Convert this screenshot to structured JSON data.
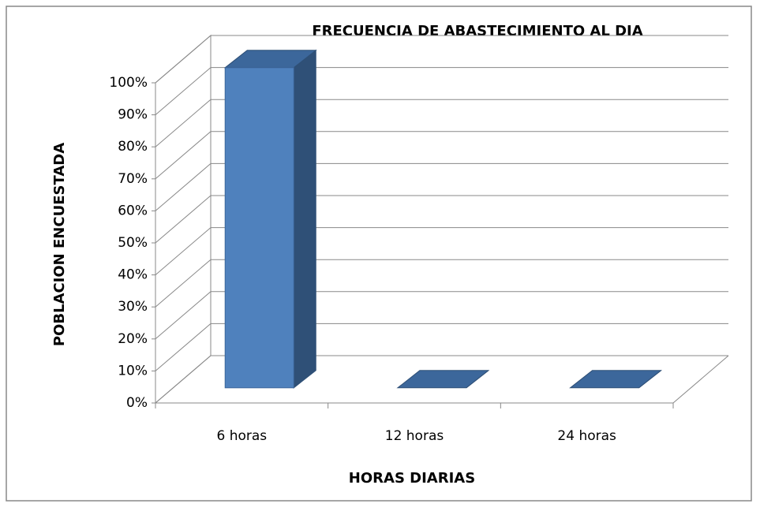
{
  "chart_data": {
    "type": "bar3d",
    "title": "FRECUENCIA DE ABASTECIMIENTO AL DIA",
    "x_label": "HORAS DIARIAS",
    "y_label": "POBLACION ENCUESTADA",
    "categories": [
      "6 horas",
      "12 horas",
      "24 horas"
    ],
    "values": [
      100,
      0,
      0
    ],
    "color": "#4f81bd",
    "ylim": [
      0,
      100
    ],
    "yticks": [
      {
        "value": 0,
        "label": "0%"
      },
      {
        "value": 10,
        "label": "10%"
      },
      {
        "value": 20,
        "label": "20%"
      },
      {
        "value": 30,
        "label": "30%"
      },
      {
        "value": 40,
        "label": "40%"
      },
      {
        "value": 50,
        "label": "50%"
      },
      {
        "value": 60,
        "label": "60%"
      },
      {
        "value": 70,
        "label": "70%"
      },
      {
        "value": 80,
        "label": "80%"
      },
      {
        "value": 90,
        "label": "90%"
      },
      {
        "value": 100,
        "label": "100%"
      }
    ],
    "grid": true
  }
}
